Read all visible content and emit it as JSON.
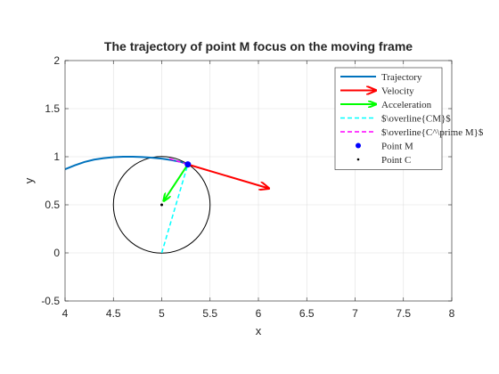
{
  "chart_data": {
    "type": "line",
    "title": "The trajectory of point M focus on the moving frame",
    "xlabel": "x",
    "ylabel": "y",
    "xlim": [
      4,
      8
    ],
    "ylim": [
      -0.5,
      2
    ],
    "xticks": [
      4,
      4.5,
      5,
      5.5,
      6,
      6.5,
      7,
      7.5,
      8
    ],
    "xticklabels": [
      "4",
      "4.5",
      "5",
      "5.5",
      "6",
      "6.5",
      "7",
      "7.5",
      "8"
    ],
    "yticks": [
      -0.5,
      0,
      0.5,
      1,
      1.5,
      2
    ],
    "yticklabels": [
      "-0.5",
      "0",
      "0.5",
      "1",
      "1.5",
      "2"
    ],
    "grid": true,
    "legend_position": "top-right",
    "series": [
      {
        "name": "Trajectory",
        "kind": "line",
        "color": "#0072BD",
        "x": [
          4.0,
          4.1,
          4.2,
          4.3,
          4.4,
          4.5,
          4.6,
          4.7,
          4.8,
          4.9,
          5.0,
          5.1,
          5.2,
          5.27
        ],
        "y": [
          0.87,
          0.91,
          0.945,
          0.97,
          0.985,
          0.995,
          1.0,
          1.0,
          0.997,
          0.99,
          0.98,
          0.965,
          0.945,
          0.92
        ]
      },
      {
        "name": "Velocity",
        "kind": "arrow",
        "color": "#FF0000",
        "from": [
          5.27,
          0.92
        ],
        "to": [
          6.11,
          0.67
        ]
      },
      {
        "name": "Acceleration",
        "kind": "arrow",
        "color": "#00FF00",
        "from": [
          5.27,
          0.92
        ],
        "to": [
          5.02,
          0.54
        ]
      },
      {
        "name": "$\\overline{CM}$",
        "kind": "dashed",
        "color": "#00FFFF",
        "x": [
          5.0,
          5.27
        ],
        "y": [
          0.0,
          0.92
        ]
      },
      {
        "name": "$\\overline{C^\\prime M}$",
        "kind": "dashed",
        "color": "#FF00FF",
        "x": [
          5.08,
          5.27
        ],
        "y": [
          0.98,
          0.92
        ]
      },
      {
        "name": "Point M",
        "kind": "marker",
        "color": "#0000FF",
        "x": [
          5.27
        ],
        "y": [
          0.92
        ]
      },
      {
        "name": "Point C",
        "kind": "marker",
        "color": "#000000",
        "x": [
          5.0
        ],
        "y": [
          0.5
        ]
      }
    ],
    "circle": {
      "center": [
        5.0,
        0.5
      ],
      "radius": 0.5,
      "color": "#000000"
    }
  }
}
